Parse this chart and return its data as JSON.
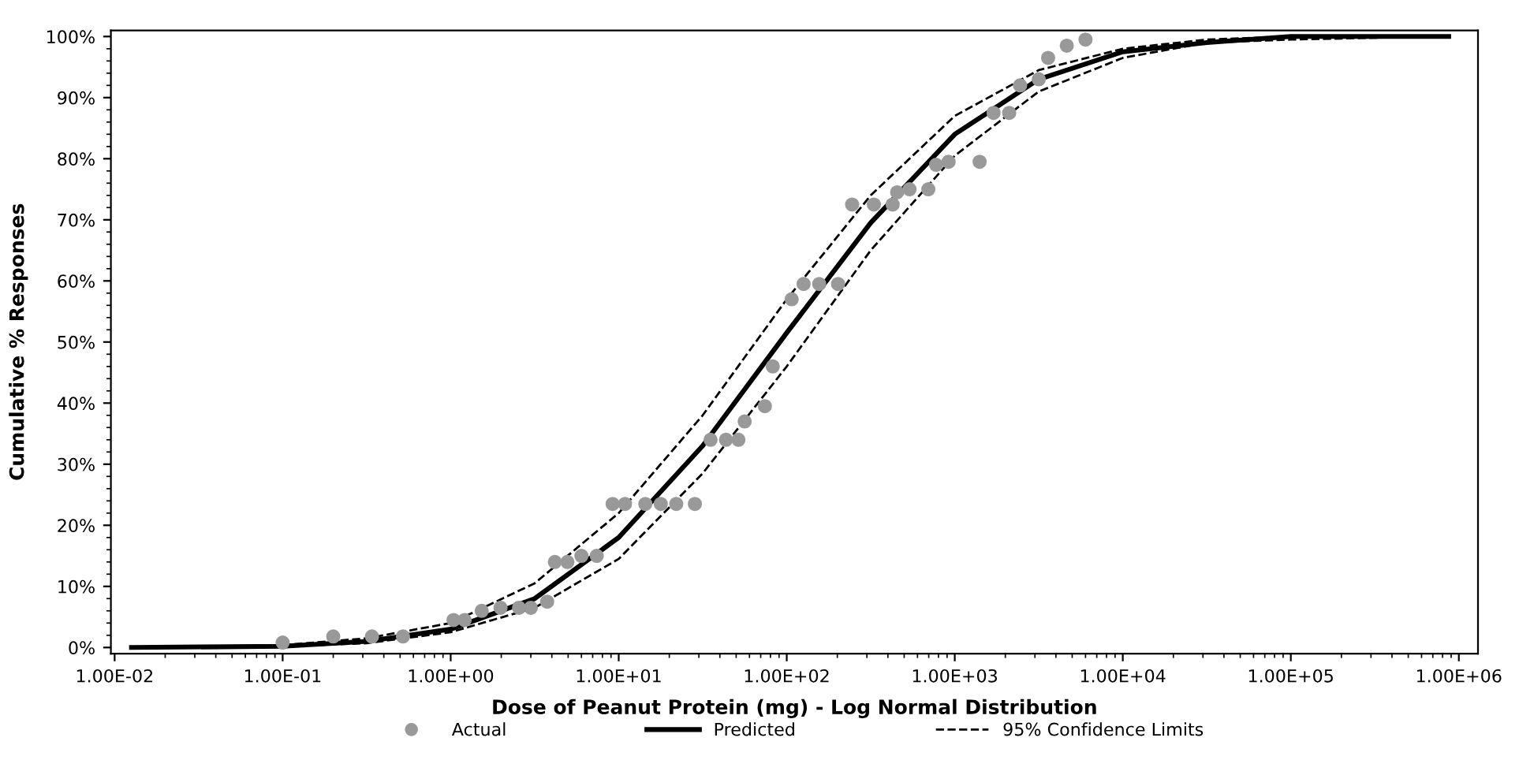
{
  "chart_data": {
    "type": "line",
    "xlabel": "Dose of Peanut Protein (mg) - Log Normal Distribution",
    "ylabel": "Cumulative % Responses",
    "log": "x",
    "grid": false,
    "legend": "bottom",
    "xlim": [
      0.0095,
      1300000
    ],
    "xticks": [
      {
        "value": 0.01,
        "label": "1.00E-02"
      },
      {
        "value": 0.1,
        "label": "1.00E-01"
      },
      {
        "value": 1,
        "label": "1.00E+00"
      },
      {
        "value": 10,
        "label": "1.00E+01"
      },
      {
        "value": 100,
        "label": "1.00E+02"
      },
      {
        "value": 1000,
        "label": "1.00E+03"
      },
      {
        "value": 10000,
        "label": "1.00E+04"
      },
      {
        "value": 100000,
        "label": "1.00E+05"
      },
      {
        "value": 1000000,
        "label": "1.00E+06"
      }
    ],
    "ylim": [
      -1,
      101
    ],
    "yticks": [
      {
        "value": 0,
        "label": "0%"
      },
      {
        "value": 10,
        "label": "10%"
      },
      {
        "value": 20,
        "label": "20%"
      },
      {
        "value": 30,
        "label": "30%"
      },
      {
        "value": 40,
        "label": "40%"
      },
      {
        "value": 50,
        "label": "50%"
      },
      {
        "value": 60,
        "label": "60%"
      },
      {
        "value": 70,
        "label": "70%"
      },
      {
        "value": 80,
        "label": "80%"
      },
      {
        "value": 90,
        "label": "90%"
      },
      {
        "value": 100,
        "label": "100%"
      }
    ],
    "series": [
      {
        "name": "Actual",
        "type": "scatter",
        "marker": "circle",
        "color": "#999999",
        "x": [
          0.1,
          0.2,
          0.34,
          0.52,
          1.04,
          1.21,
          1.53,
          1.98,
          2.55,
          3.0,
          3.75,
          4.17,
          4.95,
          6.0,
          7.4,
          9.2,
          10.9,
          14.4,
          17.8,
          22,
          28.4,
          35.2,
          43.5,
          51.6,
          56.2,
          74.1,
          82.6,
          107,
          126,
          156,
          202,
          245,
          330,
          427,
          454,
          538,
          696,
          774,
          919,
          1406,
          1702,
          2109,
          2448,
          3162,
          3594,
          4642,
          6000
        ],
        "values": [
          0.8,
          1.8,
          1.8,
          1.8,
          4.5,
          4.5,
          6,
          6.5,
          6.5,
          6.5,
          7.5,
          14,
          14,
          15,
          15,
          23.5,
          23.5,
          23.5,
          23.5,
          23.5,
          23.5,
          34,
          34,
          34,
          37,
          39.5,
          46,
          57,
          59.5,
          59.5,
          59.5,
          72.5,
          72.5,
          72.5,
          74.5,
          75,
          75,
          79,
          79.5,
          79.5,
          87.5,
          87.5,
          92,
          93,
          96.5,
          98.5,
          99.5
        ]
      },
      {
        "name": "Predicted",
        "color": "#000000",
        "line_style": "solid",
        "x": [
          0.0126,
          0.1,
          0.316,
          1,
          3.16,
          10,
          31.6,
          100,
          316,
          1000,
          3160,
          10000,
          31600,
          100000,
          870000
        ],
        "values": [
          0,
          0.2,
          1,
          3,
          8,
          18,
          33,
          51.5,
          69.5,
          84,
          93,
          97.5,
          99,
          100,
          100
        ]
      },
      {
        "name": "95% Confidence Limits",
        "color": "#000000",
        "line_style": "dashed",
        "x": [
          0.1,
          0.316,
          1,
          3.16,
          10,
          31.6,
          100,
          316,
          1000,
          3160,
          10000,
          31600,
          100000,
          900000
        ],
        "values": [
          0.4,
          1.5,
          4,
          10.5,
          22,
          38,
          57,
          74,
          87,
          94.5,
          98,
          99.5,
          100,
          100
        ]
      },
      {
        "color": "#000000",
        "line_style": "dashed",
        "x": [
          0.1,
          0.316,
          1,
          3.16,
          10,
          31.6,
          100,
          316,
          1000,
          3160,
          10000,
          31600,
          100000,
          700000
        ],
        "values": [
          0.2,
          0.7,
          2.5,
          6.5,
          14.5,
          28.5,
          46,
          65,
          80.5,
          91,
          96.5,
          99,
          99.5,
          100
        ]
      }
    ]
  }
}
